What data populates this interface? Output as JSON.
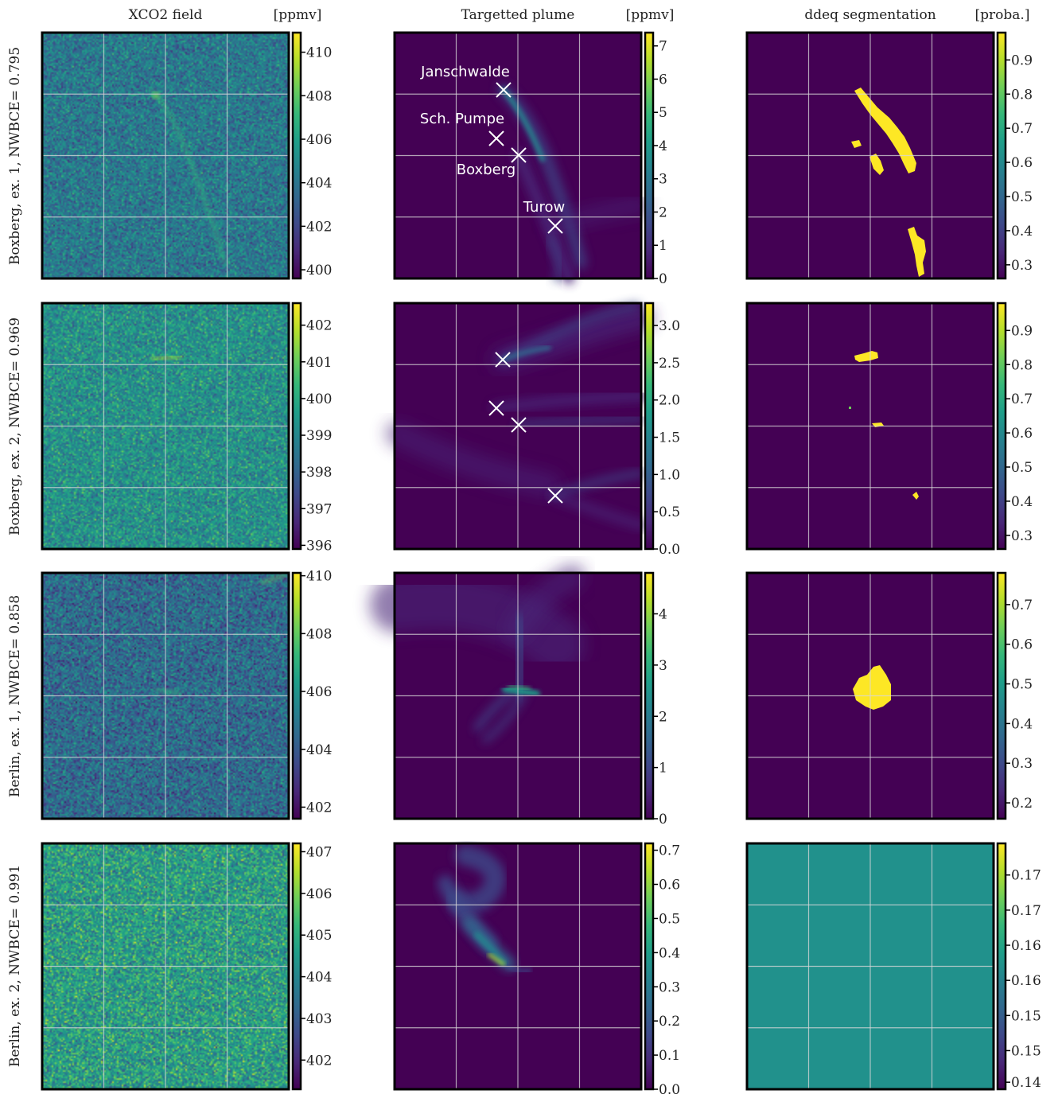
{
  "colors": {
    "viridis_stops": [
      "#440154",
      "#482878",
      "#3e4989",
      "#31688e",
      "#26828e",
      "#1f9e89",
      "#35b779",
      "#6ece58",
      "#b5de2b",
      "#fde725"
    ],
    "plume_bg": "#440154",
    "seg_yes": "#fde725",
    "seg_flat": "#21918c",
    "grid": "#d8d8d8",
    "marker": "#ffffff"
  },
  "columns": [
    {
      "title": "XCO2 field",
      "unit": "[ppmv]"
    },
    {
      "title": "Targetted plume",
      "unit": "[ppmv]"
    },
    {
      "title": "ddeq segmentation",
      "unit": "[proba.]"
    }
  ],
  "rows": [
    {
      "label": "Boxberg, ex. 1, NWBCE= 0.795"
    },
    {
      "label": "Boxberg, ex. 2, NWBCE= 0.969"
    },
    {
      "label": "Berlin, ex. 1, NWBCE= 0.858"
    },
    {
      "label": "Berlin, ex. 2, NWBCE= 0.991"
    }
  ],
  "source_labels": [
    "Janschwalde",
    "Sch. Pumpe",
    "Boxberg",
    "Turow"
  ],
  "chart_data": [
    {
      "type": "heatmap",
      "row": 0,
      "col": 0,
      "vmin": 399.6,
      "vmax": 410.9,
      "mean": 404.2,
      "noise": 1.9,
      "colorbar_ticks": [
        "400",
        "402",
        "404",
        "406",
        "408",
        "410"
      ],
      "colorbar_tick_values": [
        400,
        402,
        404,
        406,
        408,
        410
      ]
    },
    {
      "type": "heatmap",
      "row": 0,
      "col": 1,
      "vmin": 0,
      "vmax": 7.4,
      "colorbar_ticks": [
        "0",
        "1",
        "2",
        "3",
        "4",
        "5",
        "6",
        "7"
      ],
      "colorbar_tick_values": [
        0,
        1,
        2,
        3,
        4,
        5,
        6,
        7
      ],
      "sources": [
        "Janschwalde",
        "Sch. Pumpe",
        "Boxberg",
        "Turow"
      ]
    },
    {
      "type": "heatmap",
      "row": 0,
      "col": 2,
      "vmin": 0.26,
      "vmax": 0.98,
      "colorbar_ticks": [
        "0.3",
        "0.4",
        "0.5",
        "0.6",
        "0.7",
        "0.8",
        "0.9"
      ],
      "colorbar_tick_values": [
        0.3,
        0.4,
        0.5,
        0.6,
        0.7,
        0.8,
        0.9
      ]
    },
    {
      "type": "heatmap",
      "row": 1,
      "col": 0,
      "vmin": 395.9,
      "vmax": 402.6,
      "mean": 399.3,
      "noise": 1.2,
      "colorbar_ticks": [
        "396",
        "397",
        "398",
        "399",
        "400",
        "401",
        "402"
      ],
      "colorbar_tick_values": [
        396,
        397,
        398,
        399,
        400,
        401,
        402
      ]
    },
    {
      "type": "heatmap",
      "row": 1,
      "col": 1,
      "vmin": 0,
      "vmax": 3.3,
      "colorbar_ticks": [
        "0.0",
        "0.5",
        "1.0",
        "1.5",
        "2.0",
        "2.5",
        "3.0"
      ],
      "colorbar_tick_values": [
        0,
        0.5,
        1,
        1.5,
        2,
        2.5,
        3
      ]
    },
    {
      "type": "heatmap",
      "row": 1,
      "col": 2,
      "vmin": 0.26,
      "vmax": 0.98,
      "colorbar_ticks": [
        "0.3",
        "0.4",
        "0.5",
        "0.6",
        "0.7",
        "0.8",
        "0.9"
      ],
      "colorbar_tick_values": [
        0.3,
        0.4,
        0.5,
        0.6,
        0.7,
        0.8,
        0.9
      ]
    },
    {
      "type": "heatmap",
      "row": 2,
      "col": 0,
      "vmin": 401.6,
      "vmax": 410.1,
      "mean": 404.6,
      "noise": 1.6,
      "colorbar_ticks": [
        "402",
        "404",
        "406",
        "408",
        "410"
      ],
      "colorbar_tick_values": [
        402,
        404,
        406,
        408,
        410
      ]
    },
    {
      "type": "heatmap",
      "row": 2,
      "col": 1,
      "vmin": 0,
      "vmax": 4.8,
      "colorbar_ticks": [
        "0",
        "1",
        "2",
        "3",
        "4"
      ],
      "colorbar_tick_values": [
        0,
        1,
        2,
        3,
        4
      ]
    },
    {
      "type": "heatmap",
      "row": 2,
      "col": 2,
      "vmin": 0.16,
      "vmax": 0.78,
      "colorbar_ticks": [
        "0.2",
        "0.3",
        "0.4",
        "0.5",
        "0.6",
        "0.7"
      ],
      "colorbar_tick_values": [
        0.2,
        0.3,
        0.4,
        0.5,
        0.6,
        0.7
      ]
    },
    {
      "type": "heatmap",
      "row": 3,
      "col": 0,
      "vmin": 401.3,
      "vmax": 407.2,
      "mean": 404.6,
      "noise": 1.3,
      "colorbar_ticks": [
        "402",
        "403",
        "404",
        "405",
        "406",
        "407"
      ],
      "colorbar_tick_values": [
        402,
        403,
        404,
        405,
        406,
        407
      ]
    },
    {
      "type": "heatmap",
      "row": 3,
      "col": 1,
      "vmin": 0,
      "vmax": 0.72,
      "colorbar_ticks": [
        "0.0",
        "0.1",
        "0.2",
        "0.3",
        "0.4",
        "0.5",
        "0.6",
        "0.7"
      ],
      "colorbar_tick_values": [
        0,
        0.1,
        0.2,
        0.3,
        0.4,
        0.5,
        0.6,
        0.7
      ]
    },
    {
      "type": "heatmap",
      "row": 3,
      "col": 2,
      "vmin": 0.1395,
      "vmax": 0.1745,
      "constant_value": 0.157,
      "colorbar_ticks": [
        "0.14",
        "0.15",
        "0.15",
        "0.16",
        "0.16",
        "0.17",
        "0.17"
      ],
      "colorbar_tick_values": [
        0.1405,
        0.145,
        0.15,
        0.155,
        0.16,
        0.165,
        0.17
      ]
    }
  ]
}
